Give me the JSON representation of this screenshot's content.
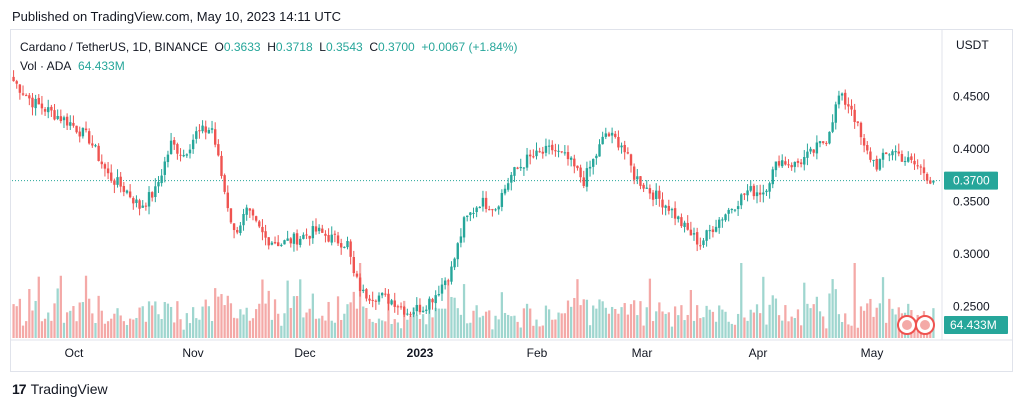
{
  "header": {
    "published": "Published on TradingView.com, May 10, 2023 14:11 UTC"
  },
  "footer": {
    "brand": "TradingView"
  },
  "colors": {
    "up": "#26a69a",
    "down": "#ef5350",
    "vol_up": "#9fd6cf",
    "vol_down": "#f4a9a7",
    "last_price": "#26a69a"
  },
  "chart_data": {
    "type": "candlestick",
    "symbol_line": "Cardano / TetherUS, 1D, BINANCE",
    "ohlc": {
      "o_label": "O",
      "o_value": "0.3633",
      "h_label": "H",
      "h_value": "0.3718",
      "l_label": "L",
      "l_value": "0.3543",
      "c_label": "C",
      "c_value": "0.3700",
      "change": "+0.0067 (+1.84%)"
    },
    "volume_label": "Vol · ADA",
    "volume_value": "64.433M",
    "currency": "USDT",
    "last_price": "0.3700",
    "last_price_value": 0.37,
    "ylim": [
      0.22,
      0.485
    ],
    "y_ticks": [
      {
        "value": 0.45,
        "label": "0.4500"
      },
      {
        "value": 0.4,
        "label": "0.4000"
      },
      {
        "value": 0.35,
        "label": "0.3500"
      },
      {
        "value": 0.3,
        "label": "0.3000"
      },
      {
        "value": 0.25,
        "label": "0.2500"
      }
    ],
    "x_labels": [
      {
        "label": "Oct",
        "bold": false
      },
      {
        "label": "Nov",
        "bold": false
      },
      {
        "label": "Dec",
        "bold": false
      },
      {
        "label": "2023",
        "bold": true
      },
      {
        "label": "Feb",
        "bold": false
      },
      {
        "label": "Mar",
        "bold": false
      },
      {
        "label": "Apr",
        "bold": false
      },
      {
        "label": "May",
        "bold": false
      }
    ],
    "anchors": [
      [
        0,
        0.465
      ],
      [
        6,
        0.445
      ],
      [
        12,
        0.435
      ],
      [
        18,
        0.425
      ],
      [
        24,
        0.41
      ],
      [
        30,
        0.375
      ],
      [
        36,
        0.36
      ],
      [
        40,
        0.345
      ],
      [
        45,
        0.36
      ],
      [
        50,
        0.405
      ],
      [
        54,
        0.395
      ],
      [
        58,
        0.415
      ],
      [
        63,
        0.42
      ],
      [
        67,
        0.36
      ],
      [
        70,
        0.32
      ],
      [
        74,
        0.34
      ],
      [
        80,
        0.315
      ],
      [
        85,
        0.31
      ],
      [
        90,
        0.315
      ],
      [
        96,
        0.322
      ],
      [
        101,
        0.315
      ],
      [
        106,
        0.31
      ],
      [
        108,
        0.28
      ],
      [
        111,
        0.262
      ],
      [
        116,
        0.26
      ],
      [
        121,
        0.255
      ],
      [
        125,
        0.245
      ],
      [
        130,
        0.25
      ],
      [
        134,
        0.262
      ],
      [
        139,
        0.285
      ],
      [
        143,
        0.33
      ],
      [
        148,
        0.35
      ],
      [
        153,
        0.345
      ],
      [
        158,
        0.375
      ],
      [
        163,
        0.39
      ],
      [
        167,
        0.395
      ],
      [
        171,
        0.4
      ],
      [
        176,
        0.39
      ],
      [
        181,
        0.37
      ],
      [
        185,
        0.395
      ],
      [
        188,
        0.415
      ],
      [
        193,
        0.405
      ],
      [
        197,
        0.375
      ],
      [
        202,
        0.36
      ],
      [
        208,
        0.345
      ],
      [
        213,
        0.325
      ],
      [
        218,
        0.31
      ],
      [
        223,
        0.33
      ],
      [
        228,
        0.345
      ],
      [
        233,
        0.36
      ],
      [
        238,
        0.36
      ],
      [
        243,
        0.39
      ],
      [
        248,
        0.385
      ],
      [
        253,
        0.395
      ],
      [
        258,
        0.41
      ],
      [
        262,
        0.45
      ],
      [
        266,
        0.44
      ],
      [
        270,
        0.4
      ],
      [
        274,
        0.385
      ],
      [
        279,
        0.4
      ],
      [
        283,
        0.39
      ],
      [
        288,
        0.382
      ],
      [
        292,
        0.368
      ]
    ],
    "total_bars": 293
  }
}
